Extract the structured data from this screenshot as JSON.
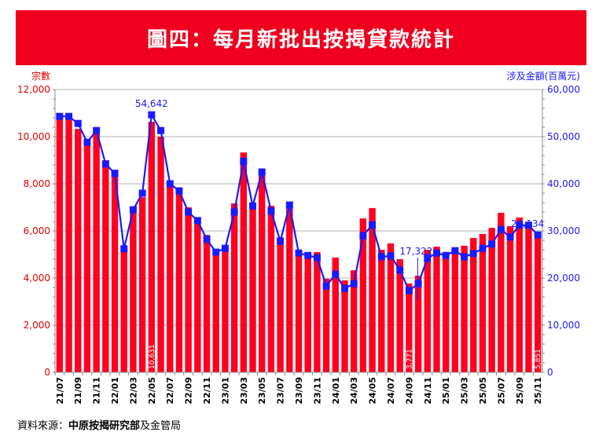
{
  "title": "圖四：每月新批出按揭貸款統計",
  "source": {
    "prefix": "資料來源：",
    "bold": "中原按揭研究部",
    "suffix": "及金管局"
  },
  "chart_data": {
    "type": "bar+line",
    "title": "圖四：每月新批出按揭貸款統計",
    "ylabel_left": "宗數",
    "ylabel_right": "涉及金額(百萬元)",
    "ylim_left": [
      0,
      12000
    ],
    "ylim_right": [
      0,
      60000
    ],
    "yticks_left": [
      "0",
      "2,000",
      "4,000",
      "6,000",
      "8,000",
      "10,000",
      "12,000"
    ],
    "yticks_right": [
      "0",
      "10,000",
      "20,000",
      "30,000",
      "40,000",
      "50,000",
      "60,000"
    ],
    "grid": true,
    "colors": {
      "bars": "#ff0020",
      "line": "#1a1aff",
      "left_axis": "#e00000",
      "right_axis": "#1a1aff"
    },
    "categories": [
      "21/07",
      "21/08",
      "21/09",
      "21/10",
      "21/11",
      "21/12",
      "22/01",
      "22/02",
      "22/03",
      "22/04",
      "22/05",
      "22/06",
      "22/07",
      "22/08",
      "22/09",
      "22/10",
      "22/11",
      "22/12",
      "23/01",
      "23/02",
      "23/03",
      "23/04",
      "23/05",
      "23/06",
      "23/07",
      "23/08",
      "23/09",
      "23/10",
      "23/11",
      "23/12",
      "24/01",
      "24/02",
      "24/03",
      "24/04",
      "24/05",
      "24/06",
      "24/07",
      "24/08",
      "24/09",
      "24/10",
      "24/11",
      "24/12",
      "25/01",
      "25/02",
      "25/03",
      "25/04",
      "25/05",
      "25/06",
      "25/07",
      "25/08",
      "25/09",
      "25/10",
      "25/11"
    ],
    "xtick_labels": [
      "21/07",
      "21/09",
      "21/11",
      "22/01",
      "22/03",
      "22/05",
      "22/07",
      "22/09",
      "22/11",
      "23/01",
      "23/03",
      "23/05",
      "23/07",
      "23/09",
      "23/11",
      "24/01",
      "24/03",
      "24/05",
      "24/07",
      "24/09",
      "24/11",
      "25/01",
      "25/03",
      "25/05",
      "25/07",
      "25/09",
      "25/11"
    ],
    "series": [
      {
        "axis": "left",
        "kind": "bar",
        "values": [
          10900,
          10870,
          10330,
          9670,
          10130,
          9000,
          8600,
          5230,
          6800,
          7430,
          10631,
          10000,
          7870,
          7830,
          7000,
          6430,
          5830,
          5200,
          5230,
          7170,
          9330,
          6970,
          8430,
          7070,
          5730,
          7000,
          5000,
          5070,
          5100,
          3970,
          4870,
          3900,
          4330,
          6530,
          6970,
          5200,
          5470,
          4800,
          3771,
          4100,
          5200,
          5330,
          5100,
          5200,
          5370,
          5700,
          5870,
          6130,
          6770,
          6200,
          6570,
          6170,
          5851
        ]
      },
      {
        "axis": "right",
        "kind": "line",
        "values": [
          54300,
          54300,
          52800,
          48800,
          51300,
          44200,
          42200,
          26200,
          34500,
          38000,
          54642,
          51300,
          40000,
          38500,
          34000,
          32200,
          28200,
          25500,
          26300,
          34000,
          44800,
          35300,
          42500,
          34200,
          27800,
          35500,
          25300,
          24800,
          24300,
          18300,
          20800,
          17800,
          18800,
          29000,
          31300,
          24500,
          24700,
          21700,
          17322,
          18800,
          24200,
          25300,
          24800,
          25800,
          24500,
          25200,
          26300,
          27200,
          30300,
          28700,
          31200,
          31200,
          29134
        ]
      }
    ],
    "annotations": {
      "bar_labels": [
        {
          "category": "22/05",
          "text": "10,631"
        },
        {
          "category": "24/09",
          "text": "3,771"
        },
        {
          "category": "25/11",
          "text": "5,851"
        }
      ],
      "line_labels": [
        {
          "category": "22/05",
          "text": "54,642"
        },
        {
          "category": "24/09",
          "text": "17,322"
        },
        {
          "category": "25/11",
          "text": "29,134"
        }
      ]
    }
  }
}
